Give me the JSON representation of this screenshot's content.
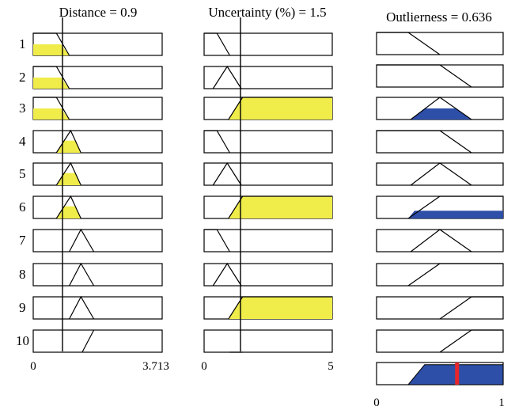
{
  "titles": {
    "distance": "Distance = 0.9",
    "uncertainty": "Uncertainty (%) = 1.5",
    "outlierness": "Outlierness = 0.636"
  },
  "rule_numbers": [
    "1",
    "2",
    "3",
    "4",
    "5",
    "6",
    "7",
    "8",
    "9",
    "10"
  ],
  "axis_ticks": {
    "distance": {
      "min": "0",
      "max": "3.713"
    },
    "uncertainty": {
      "min": "0",
      "max": "5"
    },
    "outlierness": {
      "min": "0",
      "max": "1"
    }
  },
  "colors": {
    "input_fill": "#f0ec4a",
    "output_fill": "#2d4fa8",
    "output_marker": "#e8262a"
  },
  "inputs": {
    "distance": 0.9,
    "uncertainty": 1.5,
    "outlierness": 0.636
  },
  "ranges": {
    "distance": [
      0,
      3.713
    ],
    "uncertainty": [
      0,
      5
    ],
    "outlierness": [
      0,
      1
    ]
  }
}
